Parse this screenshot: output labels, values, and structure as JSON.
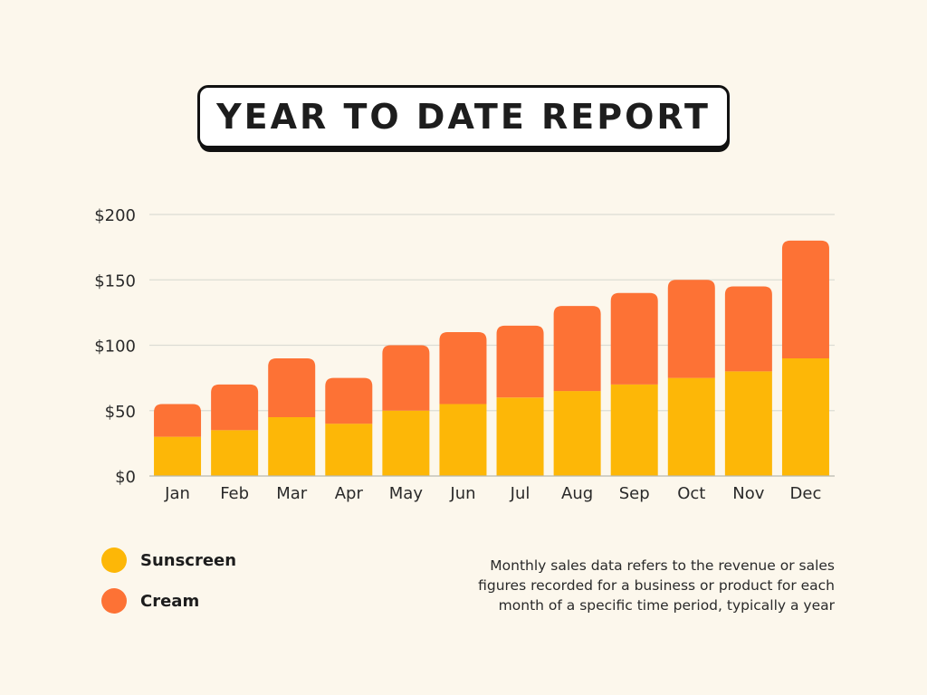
{
  "title": "YEAR TO DATE REPORT",
  "colors": {
    "background": "#fcf7ec",
    "sunscreen": "#fdb707",
    "cream": "#fd7235",
    "grid": "#dcdcd4"
  },
  "chart_data": {
    "type": "bar",
    "stacked": true,
    "categories": [
      "Jan",
      "Feb",
      "Mar",
      "Apr",
      "May",
      "Jun",
      "Jul",
      "Aug",
      "Sep",
      "Oct",
      "Nov",
      "Dec"
    ],
    "series": [
      {
        "name": "Sunscreen",
        "color": "#fdb707",
        "values": [
          30,
          35,
          45,
          40,
          50,
          55,
          60,
          65,
          70,
          75,
          80,
          90
        ]
      },
      {
        "name": "Cream",
        "color": "#fd7235",
        "values": [
          25,
          35,
          45,
          35,
          50,
          55,
          55,
          65,
          70,
          75,
          65,
          90
        ]
      }
    ],
    "yticks": [
      "$0",
      "$50",
      "$100",
      "$150",
      "$200"
    ],
    "ytick_values": [
      0,
      50,
      100,
      150,
      200
    ],
    "ylim": [
      0,
      200
    ],
    "grid": true,
    "legend_position": "bottom-left"
  },
  "legend": [
    {
      "label": "Sunscreen",
      "color": "#fdb707"
    },
    {
      "label": "Cream",
      "color": "#fd7235"
    }
  ],
  "note": {
    "lines": [
      "Monthly sales data refers to the revenue or sales",
      "figures recorded for a business or product for each",
      "month of a specific time period, typically a year"
    ]
  }
}
